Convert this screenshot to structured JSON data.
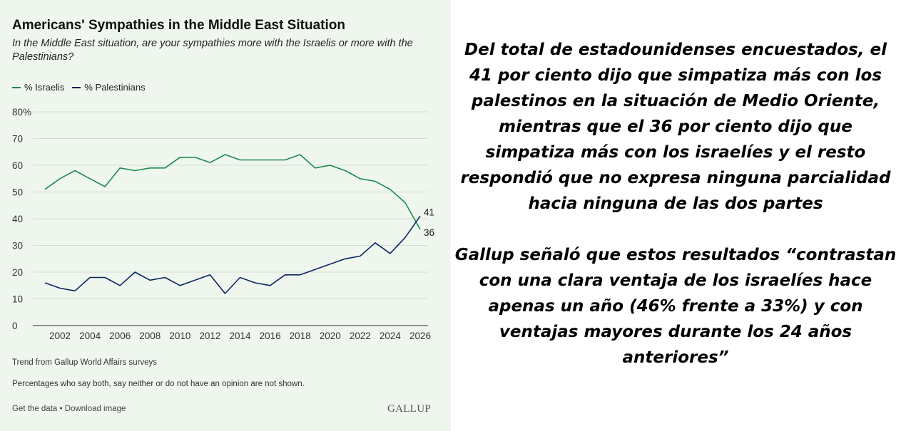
{
  "chart_data": {
    "type": "line",
    "title": "Americans' Sympathies in the Middle East Situation",
    "subtitle": "In the Middle East situation, are your sympathies more with the Israelis or more with the Palestinians?",
    "x": [
      2001,
      2002,
      2003,
      2004,
      2005,
      2006,
      2007,
      2008,
      2009,
      2010,
      2011,
      2012,
      2013,
      2014,
      2015,
      2016,
      2017,
      2018,
      2019,
      2020,
      2021,
      2022,
      2023,
      2024,
      2025,
      2026
    ],
    "series": [
      {
        "name": "% Israelis",
        "color": "#1f8a4c",
        "values": [
          51,
          55,
          58,
          55,
          52,
          59,
          58,
          59,
          59,
          63,
          63,
          61,
          64,
          62,
          62,
          62,
          62,
          64,
          59,
          60,
          58,
          55,
          54,
          51,
          46,
          36
        ]
      },
      {
        "name": "% Palestinians",
        "color": "#0b2560",
        "values": [
          16,
          14,
          13,
          18,
          18,
          15,
          20,
          17,
          18,
          15,
          17,
          19,
          12,
          18,
          16,
          15,
          19,
          19,
          21,
          23,
          25,
          26,
          31,
          27,
          33,
          41
        ]
      }
    ],
    "ylim": [
      0,
      80
    ],
    "yticks": [
      0,
      10,
      20,
      30,
      40,
      50,
      60,
      70,
      80
    ],
    "ytick_labels": [
      "0",
      "10",
      "20",
      "30",
      "40",
      "50",
      "60",
      "70",
      "80%"
    ],
    "xticks": [
      2002,
      2004,
      2006,
      2008,
      2010,
      2012,
      2014,
      2016,
      2018,
      2020,
      2022,
      2024,
      2026
    ],
    "end_labels": [
      "41",
      "36"
    ],
    "grid": true,
    "legend_position": "top-left"
  },
  "footnotes": {
    "trend": "Trend from Gallup World Affairs surveys",
    "note": "Percentages who say both, say neither or do not have an opinion are not shown."
  },
  "links": "Get the data • Download image",
  "logo_text": "GALLUP",
  "article": {
    "paragraph1": "Del total de estadounidenses encuestados, el 41 por ciento dijo que simpatiza más con los palestinos en la situación de Medio Oriente, mientras que el 36 por ciento dijo que simpatiza más con los israelíes y el resto respondió que no expresa ninguna parcialidad hacia ninguna de las dos partes",
    "paragraph2": "Gallup señaló que estos resultados “contrastan con una clara ventaja de los israelíes hace apenas un año (46% frente a 33%) y con ventajas mayores durante los 24 años anteriores”"
  }
}
